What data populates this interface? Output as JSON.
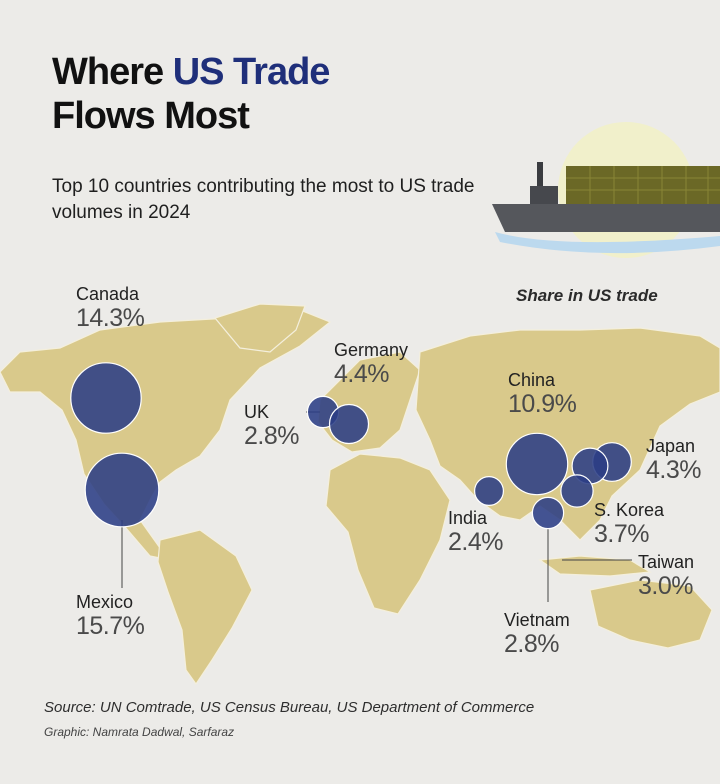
{
  "title": {
    "line1_plain": "Where ",
    "line1_highlight": "US Trade",
    "line2": "Flows Most"
  },
  "subtitle": "Top 10 countries contributing the most to US trade volumes in 2024",
  "legend_label": "Share in US trade",
  "colors": {
    "bubble": "#2b3d85",
    "land": "#d9c98b",
    "highlight": "#1f2f7a"
  },
  "icons": [
    "cargo-ship-icon"
  ],
  "countries": [
    {
      "name": "Canada",
      "share": "14.3",
      "unit": "%"
    },
    {
      "name": "Mexico",
      "share": "15.7",
      "unit": "%"
    },
    {
      "name": "UK",
      "share": "2.8",
      "unit": "%"
    },
    {
      "name": "Germany",
      "share": "4.4",
      "unit": "%"
    },
    {
      "name": "China",
      "share": "10.9",
      "unit": "%"
    },
    {
      "name": "Japan",
      "share": "4.3",
      "unit": "%"
    },
    {
      "name": "India",
      "share": "2.4",
      "unit": "%"
    },
    {
      "name": "S. Korea",
      "share": "3.7",
      "unit": "%"
    },
    {
      "name": "Taiwan",
      "share": "3.0",
      "unit": "%"
    },
    {
      "name": "Vietnam",
      "share": "2.8",
      "unit": "%"
    }
  ],
  "source": "Source: UN Comtrade, US Census Bureau, US Department of Commerce",
  "credit": "Graphic: Namrata Dadwal, Sarfaraz"
}
